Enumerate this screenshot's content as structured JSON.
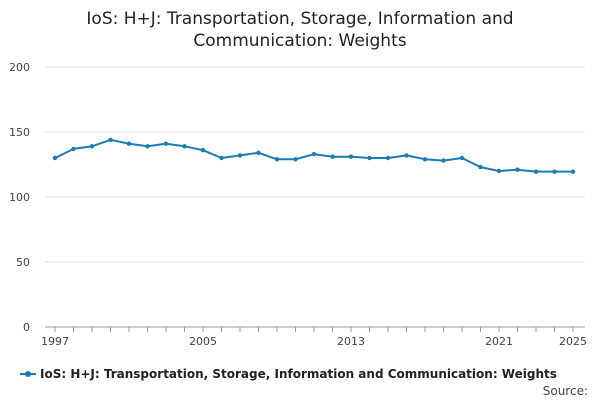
{
  "chart_data": {
    "type": "line",
    "title": "IoS: H+J: Transportation, Storage, Information and Communication: Weights",
    "title_lines": [
      "IoS: H+J: Transportation, Storage, Information and",
      "Communication: Weights"
    ],
    "xlabel": "",
    "ylabel": "",
    "x_tick_labels": [
      "1997",
      "2005",
      "2013",
      "2021",
      "2025"
    ],
    "y_tick_labels": [
      "0",
      "50",
      "100",
      "150",
      "200"
    ],
    "ylim": [
      0,
      200
    ],
    "xlim": [
      1997,
      2025
    ],
    "grid": true,
    "legend_position": "bottom-left",
    "x": [
      1997,
      1998,
      1999,
      2000,
      2001,
      2002,
      2003,
      2004,
      2005,
      2006,
      2007,
      2008,
      2009,
      2010,
      2011,
      2012,
      2013,
      2014,
      2015,
      2016,
      2017,
      2018,
      2019,
      2020,
      2021,
      2022,
      2023,
      2024,
      2025
    ],
    "series": [
      {
        "name": "IoS: H+J: Transportation, Storage, Information and Communication: Weights",
        "color": "#1a7cb7",
        "values": [
          130,
          137,
          139,
          144,
          141,
          139,
          141,
          139,
          136,
          130,
          132,
          134,
          129,
          129,
          133,
          131,
          131,
          130,
          130,
          132,
          129,
          128,
          130,
          123,
          120,
          121,
          119.5,
          119.5,
          119.5
        ]
      }
    ]
  },
  "footer": {
    "source_label": "Source:"
  }
}
